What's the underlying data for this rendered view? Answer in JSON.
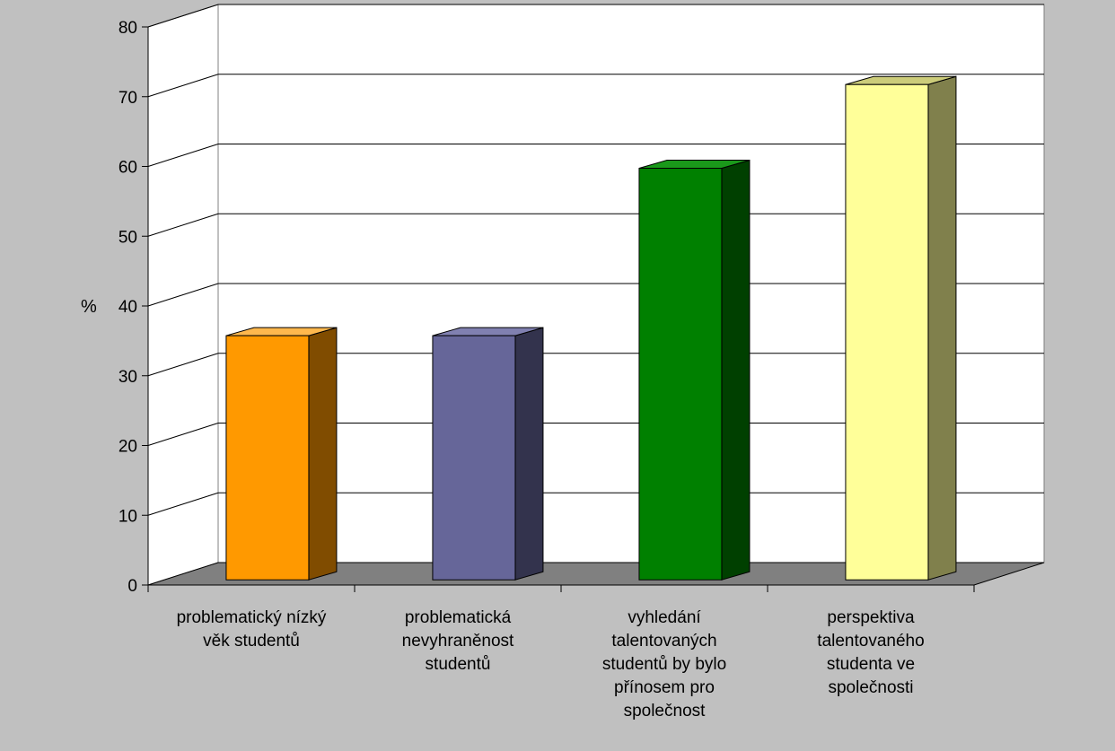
{
  "chart_data": {
    "type": "bar",
    "ylabel": "%",
    "ylim": [
      0,
      80
    ],
    "yticks": [
      0,
      10,
      20,
      30,
      40,
      50,
      60,
      70,
      80
    ],
    "grid": true,
    "categories": [
      [
        "problematický nízký",
        "věk studentů"
      ],
      [
        "problematická",
        "nevyhraněnost",
        "studentů"
      ],
      [
        "vyhledání",
        "talentovaných",
        "studentů by bylo",
        "přínosem pro",
        "společnost"
      ],
      [
        "perspektiva",
        "talentovaného",
        "studenta ve",
        "společnosti"
      ]
    ],
    "values": [
      35,
      35,
      59,
      71
    ],
    "colors": {
      "front": [
        "#ff9900",
        "#666699",
        "#008000",
        "#ffff99"
      ],
      "side": [
        "#804c00",
        "#33334d",
        "#004000",
        "#80804c"
      ],
      "top": [
        "#ffb84d",
        "#8080b0",
        "#1a991a",
        "#cccc7a"
      ],
      "wall": "#ffffff",
      "floor": "#808080",
      "background": "#c0c0c0"
    }
  }
}
